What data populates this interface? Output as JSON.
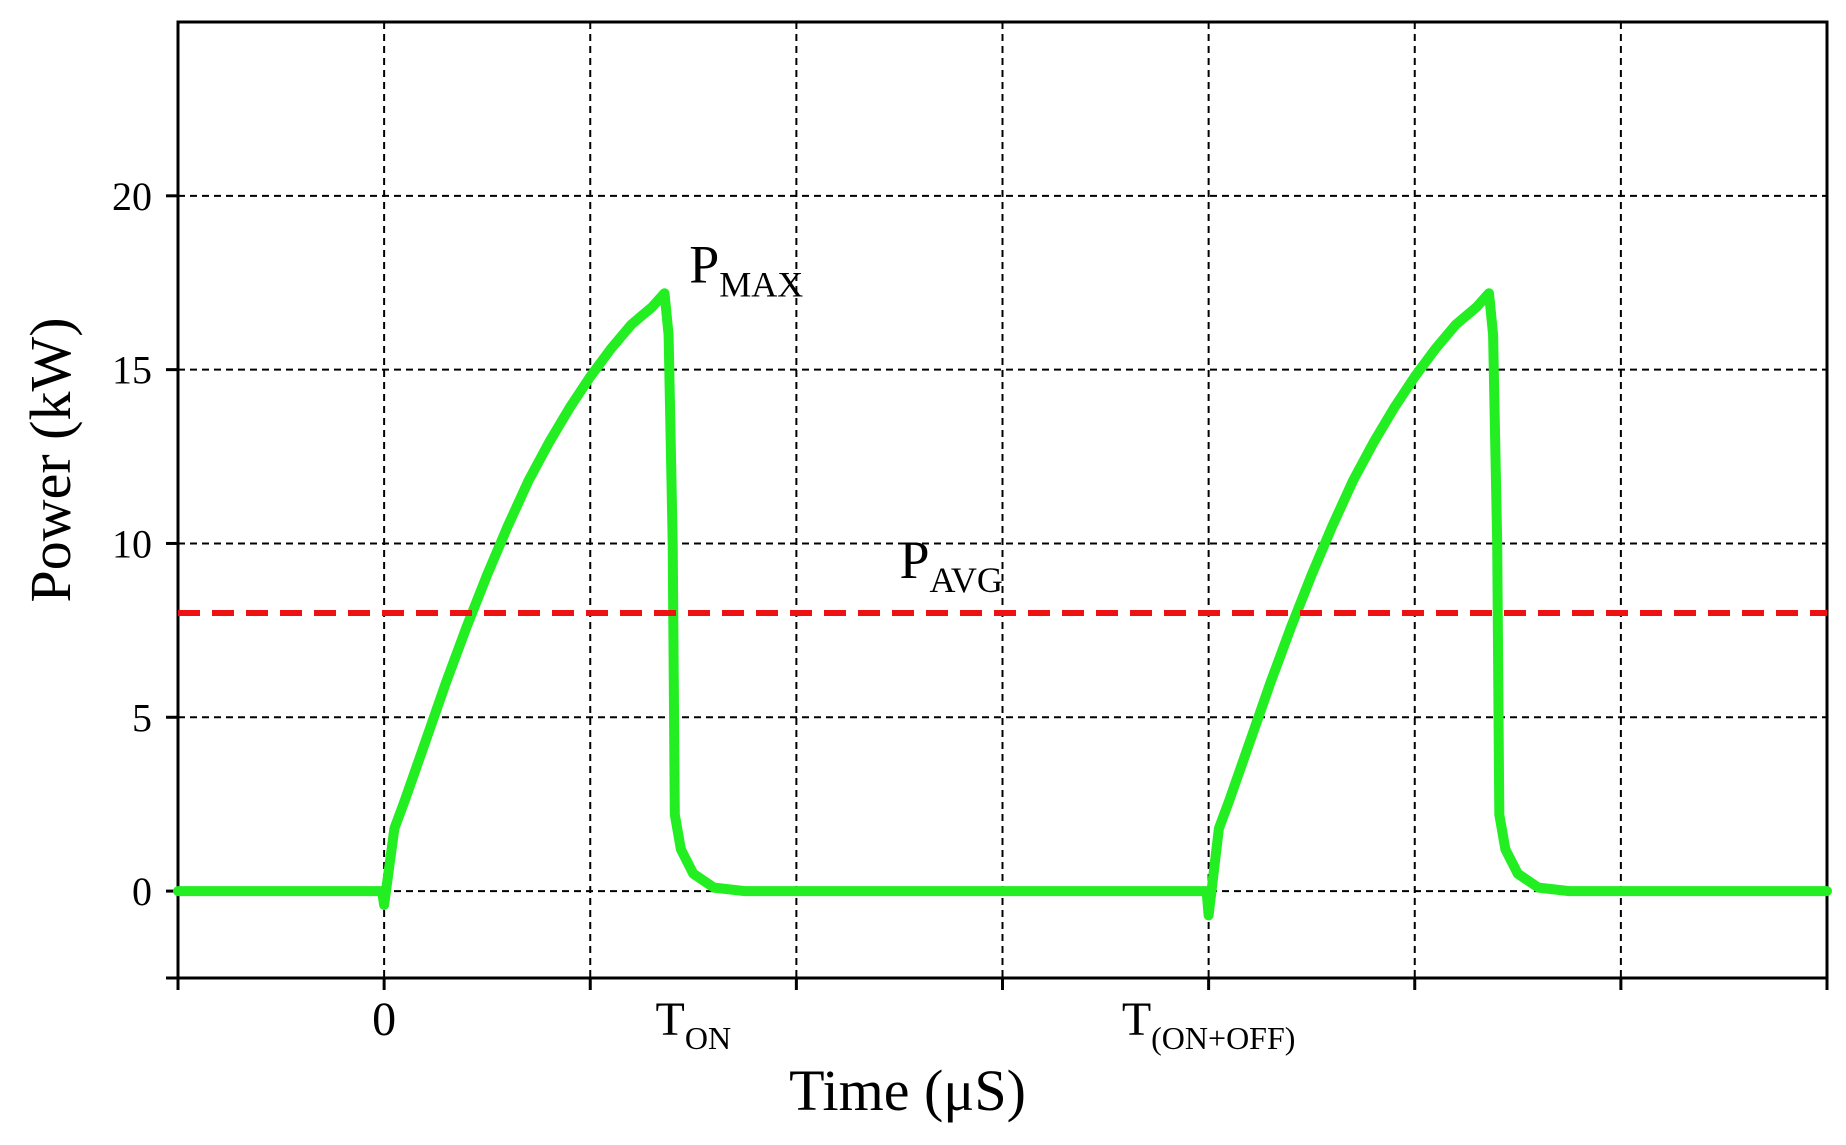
{
  "chart_data": {
    "type": "line",
    "xlabel": "Time (μS)",
    "ylabel": "Power (kW)",
    "xlim": [
      -1,
      7
    ],
    "ylim": [
      -2.5,
      25
    ],
    "grid": true,
    "y_ticks": [
      0,
      5,
      10,
      15,
      20
    ],
    "y_tick_labels": [
      "0",
      "5",
      "10",
      "15",
      "20"
    ],
    "x_ticks": [
      -1,
      0,
      1,
      2,
      3,
      4,
      5,
      6,
      7
    ],
    "x_tick_labels": [
      {
        "x": 0,
        "main": "0",
        "sub": ""
      },
      {
        "x": 1.5,
        "main": "T",
        "sub": "ON"
      },
      {
        "x": 4,
        "main": "T",
        "sub": "(ON+OFF)"
      }
    ],
    "series": [
      {
        "color": "#22ee22",
        "style": "solid",
        "points": [
          [
            -1,
            0
          ],
          [
            -0.01,
            0
          ],
          [
            0,
            -0.4
          ],
          [
            0.05,
            1.8
          ],
          [
            0.1,
            2.6
          ],
          [
            0.2,
            4.3
          ],
          [
            0.3,
            6.0
          ],
          [
            0.4,
            7.6
          ],
          [
            0.5,
            9.1
          ],
          [
            0.6,
            10.5
          ],
          [
            0.7,
            11.8
          ],
          [
            0.8,
            12.9
          ],
          [
            0.9,
            13.9
          ],
          [
            1.0,
            14.8
          ],
          [
            1.1,
            15.6
          ],
          [
            1.2,
            16.3
          ],
          [
            1.3,
            16.8
          ],
          [
            1.36,
            17.2
          ],
          [
            1.38,
            16.0
          ],
          [
            1.4,
            10.0
          ],
          [
            1.41,
            2.2
          ],
          [
            1.44,
            1.2
          ],
          [
            1.5,
            0.5
          ],
          [
            1.6,
            0.1
          ],
          [
            1.75,
            0
          ],
          [
            3.99,
            0
          ],
          [
            4.0,
            -0.7
          ],
          [
            4.05,
            1.8
          ],
          [
            4.1,
            2.6
          ],
          [
            4.2,
            4.3
          ],
          [
            4.3,
            6.0
          ],
          [
            4.4,
            7.6
          ],
          [
            4.5,
            9.1
          ],
          [
            4.6,
            10.5
          ],
          [
            4.7,
            11.8
          ],
          [
            4.8,
            12.9
          ],
          [
            4.9,
            13.9
          ],
          [
            5.0,
            14.8
          ],
          [
            5.1,
            15.6
          ],
          [
            5.2,
            16.3
          ],
          [
            5.3,
            16.8
          ],
          [
            5.36,
            17.2
          ],
          [
            5.38,
            16.0
          ],
          [
            5.4,
            10.0
          ],
          [
            5.41,
            2.2
          ],
          [
            5.44,
            1.2
          ],
          [
            5.5,
            0.5
          ],
          [
            5.6,
            0.1
          ],
          [
            5.75,
            0
          ],
          [
            7,
            0
          ]
        ]
      },
      {
        "color": "#ee1111",
        "style": "dashed",
        "points": [
          [
            -1,
            8
          ],
          [
            7,
            8
          ]
        ]
      }
    ],
    "annotations": [
      {
        "main": "P",
        "sub": "MAX",
        "x": 1.48,
        "y": 17.5
      },
      {
        "main": "P",
        "sub": "AVG",
        "x": 2.5,
        "y": 9.0
      }
    ]
  }
}
